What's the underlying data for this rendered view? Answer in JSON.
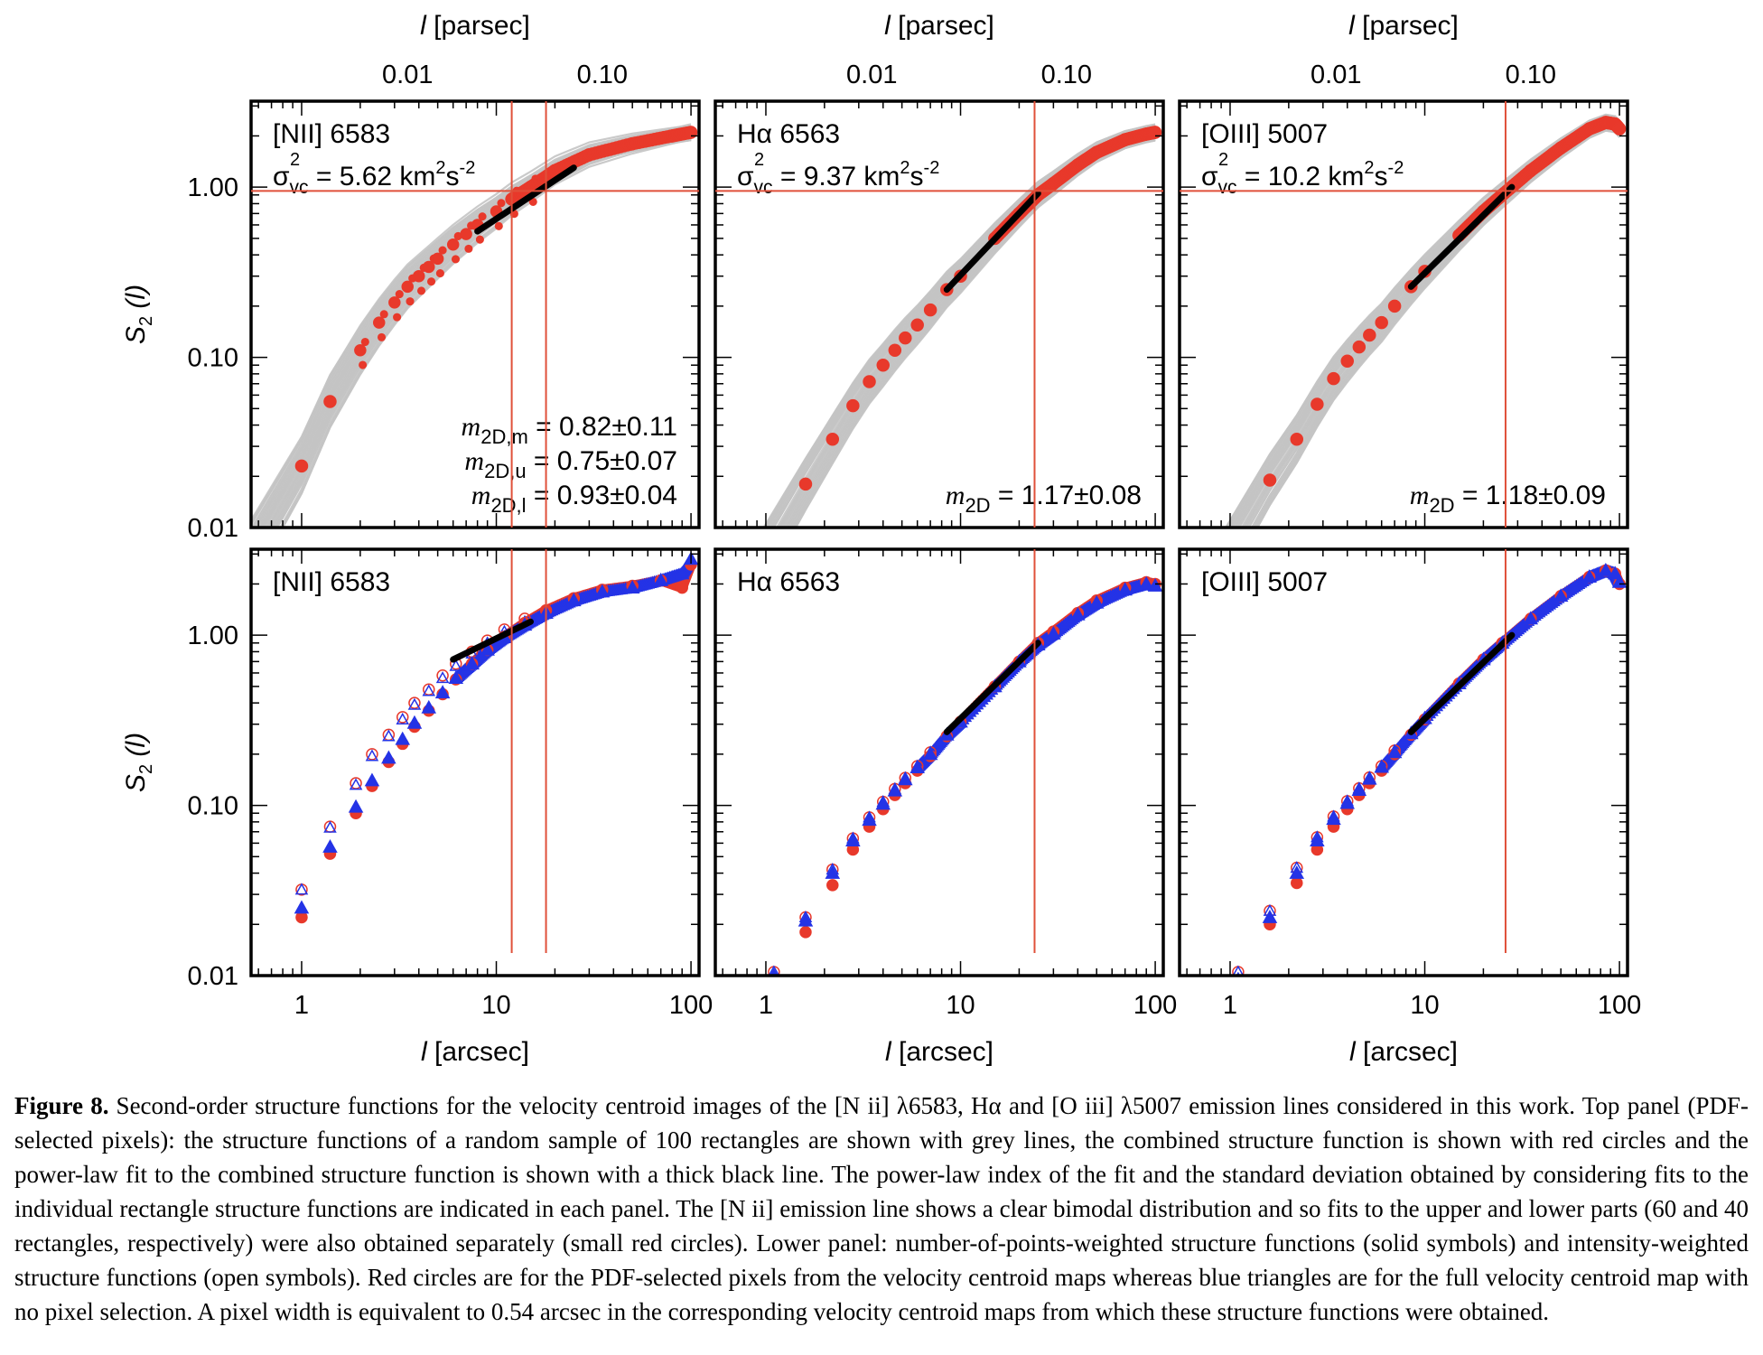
{
  "colors": {
    "grey_lines": "#c4c4c4",
    "red": "#e8392b",
    "blue": "#2433e6",
    "fit_line": "#000000",
    "ref_lines": "#e0503a"
  },
  "axes": {
    "top_xlabel_var": "l",
    "top_xlabel_unit": "[parsec]",
    "top_ticks": [
      "0.01",
      "0.10"
    ],
    "bottom_xlabel_var": "l",
    "bottom_xlabel_unit": "[arcsec]",
    "bottom_ticks": [
      "1",
      "10",
      "100"
    ],
    "ylabel_var": "S",
    "ylabel_sub": "2",
    "ylabel_arg": "(l)",
    "y_ticks": [
      "1.00",
      "0.10",
      "0.01"
    ]
  },
  "panels_top": [
    {
      "name": "[NII] 6583",
      "sigma_value": "= 5.62 km",
      "sigma_sub": "vc",
      "annotations": [
        "= 0.82±0.11",
        "= 0.75±0.07",
        "= 0.93±0.04"
      ],
      "m_subs": [
        "2D,m",
        "2D,u",
        "2D,l"
      ]
    },
    {
      "name": "Hα 6563",
      "sigma_value": "= 9.37 km",
      "sigma_sub": "vc",
      "annotations": [
        "= 1.17±0.08"
      ],
      "m_subs": [
        "2D"
      ]
    },
    {
      "name": "[OIII] 5007",
      "sigma_value": "= 10.2 km",
      "sigma_sub": "vc",
      "annotations": [
        "= 1.18±0.09"
      ],
      "m_subs": [
        "2D"
      ]
    }
  ],
  "panels_bottom": [
    {
      "name": "[NII] 6583"
    },
    {
      "name": "Hα 6563"
    },
    {
      "name": "[OIII] 5007"
    }
  ],
  "chart_data": [
    {
      "type": "scatter",
      "panel": "top-left",
      "title": "[NII] 6583",
      "xlabel": "l [arcsec]",
      "ylabel": "S2 (l)",
      "xscale": "log",
      "yscale": "log",
      "xlim": [
        0.55,
        110
      ],
      "ylim": [
        0.01,
        3.2
      ],
      "annotation_sigma": "σ²vc = 5.62 km²s⁻²",
      "series": [
        {
          "name": "combined structure function",
          "marker": "red circles",
          "x": [
            1.0,
            1.4,
            2.0,
            2.5,
            3.0,
            3.5,
            4.0,
            4.5,
            5.0,
            6.0,
            7.0,
            8.0,
            10.0,
            12.0,
            15.0,
            20.0,
            30.0,
            50.0,
            80.0,
            100.0
          ],
          "y": [
            0.023,
            0.055,
            0.11,
            0.16,
            0.21,
            0.26,
            0.3,
            0.34,
            0.38,
            0.46,
            0.53,
            0.6,
            0.72,
            0.85,
            1.0,
            1.25,
            1.55,
            1.8,
            2.0,
            2.1
          ]
        },
        {
          "name": "power-law fit",
          "marker": "thick black line",
          "x": [
            8.0,
            25.0
          ],
          "y": [
            0.55,
            1.3
          ]
        }
      ],
      "reference_lines": {
        "horizontal_y": 0.95,
        "vertical_x": [
          12.0,
          18.0
        ]
      }
    },
    {
      "type": "scatter",
      "panel": "top-middle",
      "title": "Hα 6563",
      "xlabel": "l [arcsec]",
      "ylabel": "S2 (l)",
      "xscale": "log",
      "yscale": "log",
      "xlim": [
        0.55,
        110
      ],
      "ylim": [
        0.01,
        3.2
      ],
      "annotation_sigma": "σ²vc = 9.37 km²s⁻²",
      "series": [
        {
          "name": "combined structure function",
          "marker": "red circles",
          "x": [
            1.6,
            2.2,
            2.8,
            3.4,
            4.0,
            4.6,
            5.2,
            6.0,
            7.0,
            8.5,
            10.0,
            15.0,
            20.0,
            25.0,
            30.0,
            40.0,
            50.0,
            70.0,
            90.0,
            100.0
          ],
          "y": [
            0.018,
            0.033,
            0.052,
            0.072,
            0.09,
            0.11,
            0.13,
            0.155,
            0.19,
            0.25,
            0.3,
            0.5,
            0.7,
            0.9,
            1.05,
            1.35,
            1.6,
            1.9,
            2.05,
            2.1
          ]
        },
        {
          "name": "power-law fit",
          "marker": "thick black line",
          "x": [
            8.5,
            25.0
          ],
          "y": [
            0.25,
            0.92
          ]
        }
      ],
      "reference_lines": {
        "horizontal_y": 0.95,
        "vertical_x": [
          24.0
        ]
      }
    },
    {
      "type": "scatter",
      "panel": "top-right",
      "title": "[OIII] 5007",
      "xlabel": "l [arcsec]",
      "ylabel": "S2 (l)",
      "xscale": "log",
      "yscale": "log",
      "xlim": [
        0.55,
        110
      ],
      "ylim": [
        0.01,
        3.2
      ],
      "annotation_sigma": "σ²vc = 10.2 km²s⁻²",
      "series": [
        {
          "name": "combined structure function",
          "marker": "red circles",
          "x": [
            1.6,
            2.2,
            2.8,
            3.4,
            4.0,
            4.6,
            5.2,
            6.0,
            7.0,
            8.5,
            10.0,
            15.0,
            20.0,
            25.0,
            35.0,
            50.0,
            70.0,
            85.0,
            95.0,
            100.0
          ],
          "y": [
            0.019,
            0.033,
            0.053,
            0.075,
            0.095,
            0.115,
            0.135,
            0.16,
            0.2,
            0.26,
            0.32,
            0.52,
            0.72,
            0.9,
            1.25,
            1.7,
            2.2,
            2.4,
            2.35,
            2.2
          ]
        },
        {
          "name": "power-law fit",
          "marker": "thick black line",
          "x": [
            8.5,
            28.0
          ],
          "y": [
            0.26,
            1.0
          ]
        }
      ],
      "reference_lines": {
        "horizontal_y": 0.95,
        "vertical_x": [
          26.0
        ]
      }
    },
    {
      "type": "scatter",
      "panel": "bottom-left",
      "title": "[NII] 6583",
      "xlabel": "l [arcsec]",
      "ylabel": "S2 (l)",
      "xscale": "log",
      "yscale": "log",
      "xlim": [
        0.55,
        110
      ],
      "ylim": [
        0.01,
        3.2
      ],
      "series": [
        {
          "name": "PDF-selected, points-weighted",
          "marker": "solid red circles",
          "x": [
            1.0,
            1.4,
            1.9,
            2.3,
            2.8,
            3.3,
            3.8,
            4.5,
            5.3,
            6.2,
            7.5,
            9.0,
            11.0,
            14.0,
            18.0,
            25.0,
            35.0,
            50.0,
            70.0,
            90.0,
            100.0
          ],
          "y": [
            0.022,
            0.052,
            0.09,
            0.13,
            0.18,
            0.23,
            0.29,
            0.36,
            0.45,
            0.55,
            0.68,
            0.82,
            0.98,
            1.18,
            1.4,
            1.65,
            1.85,
            1.95,
            2.1,
            1.9,
            2.6
          ]
        },
        {
          "name": "full map, points-weighted",
          "marker": "solid blue triangles",
          "x": [
            1.0,
            1.4,
            1.9,
            2.3,
            2.8,
            3.3,
            3.8,
            4.5,
            5.3,
            6.2,
            7.5,
            9.0,
            11.0,
            14.0,
            18.0,
            25.0,
            35.0,
            50.0,
            70.0,
            90.0,
            100.0
          ],
          "y": [
            0.025,
            0.057,
            0.098,
            0.14,
            0.19,
            0.245,
            0.305,
            0.375,
            0.46,
            0.56,
            0.68,
            0.82,
            0.97,
            1.15,
            1.35,
            1.6,
            1.8,
            1.9,
            2.1,
            2.3,
            2.8
          ]
        },
        {
          "name": "PDF-selected, intensity-weighted",
          "marker": "open red circles",
          "x": [
            1.0,
            1.4,
            1.9,
            2.3,
            2.8,
            3.3,
            3.8,
            4.5,
            5.3,
            6.2,
            7.5,
            9.0,
            11.0,
            14.0
          ],
          "y": [
            0.032,
            0.075,
            0.135,
            0.2,
            0.26,
            0.33,
            0.4,
            0.48,
            0.58,
            0.68,
            0.8,
            0.93,
            1.08,
            1.25
          ]
        },
        {
          "name": "full map, intensity-weighted",
          "marker": "open blue triangles",
          "x": [
            1.0,
            1.4,
            1.9,
            2.3,
            2.8,
            3.3,
            3.8,
            4.5,
            5.3,
            6.2,
            7.5,
            9.0,
            11.0,
            14.0
          ],
          "y": [
            0.032,
            0.074,
            0.132,
            0.195,
            0.255,
            0.32,
            0.39,
            0.47,
            0.56,
            0.66,
            0.78,
            0.9,
            1.05,
            1.2
          ]
        },
        {
          "name": "power-law fit",
          "marker": "thick black line",
          "x": [
            6.0,
            15.0
          ],
          "y": [
            0.72,
            1.2
          ]
        }
      ],
      "reference_lines": {
        "vertical_x": [
          12.0,
          18.0
        ]
      }
    },
    {
      "type": "scatter",
      "panel": "bottom-middle",
      "title": "Hα 6563",
      "xlabel": "l [arcsec]",
      "ylabel": "S2 (l)",
      "xscale": "log",
      "yscale": "log",
      "xlim": [
        0.55,
        110
      ],
      "ylim": [
        0.01,
        3.2
      ],
      "series": [
        {
          "name": "PDF-selected, points-weighted",
          "marker": "solid red circles",
          "x": [
            1.1,
            1.6,
            2.2,
            2.8,
            3.4,
            4.0,
            4.6,
            5.2,
            6.0,
            7.0,
            8.5,
            10.0,
            15.0,
            20.0,
            25.0,
            30.0,
            40.0,
            50.0,
            70.0,
            90.0,
            100.0
          ],
          "y": [
            0.009,
            0.018,
            0.034,
            0.055,
            0.075,
            0.095,
            0.115,
            0.135,
            0.16,
            0.195,
            0.255,
            0.31,
            0.5,
            0.7,
            0.9,
            1.05,
            1.35,
            1.6,
            1.9,
            2.05,
            2.0
          ]
        },
        {
          "name": "full map, points-weighted",
          "marker": "solid blue triangles",
          "x": [
            1.1,
            1.6,
            2.2,
            2.8,
            3.4,
            4.0,
            4.6,
            5.2,
            6.0,
            7.0,
            8.5,
            10.0,
            15.0,
            20.0,
            25.0,
            30.0,
            40.0,
            50.0,
            70.0,
            90.0,
            100.0
          ],
          "y": [
            0.01,
            0.021,
            0.04,
            0.062,
            0.082,
            0.102,
            0.122,
            0.142,
            0.167,
            0.2,
            0.26,
            0.31,
            0.5,
            0.7,
            0.88,
            1.02,
            1.32,
            1.55,
            1.85,
            2.0,
            1.95
          ]
        },
        {
          "name": "intensity-weighted",
          "marker": "open symbols",
          "x": [
            1.1,
            1.6,
            2.2,
            2.8,
            3.4,
            4.0,
            4.6,
            5.2,
            6.0,
            7.0
          ],
          "y": [
            0.0105,
            0.022,
            0.042,
            0.064,
            0.085,
            0.105,
            0.125,
            0.145,
            0.17,
            0.205
          ]
        },
        {
          "name": "power-law fit",
          "marker": "thick black line",
          "x": [
            8.5,
            25.0
          ],
          "y": [
            0.27,
            0.9
          ]
        }
      ],
      "reference_lines": {
        "vertical_x": [
          24.0
        ]
      }
    },
    {
      "type": "scatter",
      "panel": "bottom-right",
      "title": "[OIII] 5007",
      "xlabel": "l [arcsec]",
      "ylabel": "S2 (l)",
      "xscale": "log",
      "yscale": "log",
      "xlim": [
        0.55,
        110
      ],
      "ylim": [
        0.01,
        3.2
      ],
      "series": [
        {
          "name": "PDF-selected, points-weighted",
          "marker": "solid red circles",
          "x": [
            1.1,
            1.6,
            2.2,
            2.8,
            3.4,
            4.0,
            4.6,
            5.2,
            6.0,
            7.0,
            8.5,
            10.0,
            15.0,
            20.0,
            25.0,
            35.0,
            50.0,
            70.0,
            85.0,
            95.0,
            100.0
          ],
          "y": [
            0.009,
            0.02,
            0.035,
            0.055,
            0.075,
            0.095,
            0.115,
            0.135,
            0.16,
            0.2,
            0.26,
            0.32,
            0.52,
            0.72,
            0.9,
            1.25,
            1.7,
            2.2,
            2.4,
            2.3,
            2.0
          ]
        },
        {
          "name": "full map, points-weighted",
          "marker": "solid blue triangles",
          "x": [
            1.1,
            1.6,
            2.2,
            2.8,
            3.4,
            4.0,
            4.6,
            5.2,
            6.0,
            7.0,
            8.5,
            10.0,
            15.0,
            20.0,
            25.0,
            35.0,
            50.0,
            70.0,
            85.0,
            95.0,
            100.0
          ],
          "y": [
            0.0095,
            0.022,
            0.04,
            0.062,
            0.083,
            0.103,
            0.123,
            0.143,
            0.168,
            0.205,
            0.265,
            0.325,
            0.52,
            0.72,
            0.9,
            1.25,
            1.7,
            2.2,
            2.4,
            2.3,
            2.05
          ]
        },
        {
          "name": "intensity-weighted",
          "marker": "open symbols",
          "x": [
            1.1,
            1.6,
            2.2,
            2.8,
            3.4,
            4.0,
            4.6,
            5.2,
            6.0,
            7.0
          ],
          "y": [
            0.0105,
            0.024,
            0.043,
            0.065,
            0.086,
            0.106,
            0.126,
            0.146,
            0.17,
            0.21
          ]
        },
        {
          "name": "power-law fit",
          "marker": "thick black line",
          "x": [
            8.5,
            28.0
          ],
          "y": [
            0.27,
            1.0
          ]
        }
      ],
      "reference_lines": {
        "vertical_x": [
          26.0
        ]
      }
    }
  ],
  "caption": {
    "label": "Figure 8.",
    "text": "Second-order structure functions for the velocity centroid images of the [N ii] λ6583, Hα and [O iii] λ5007 emission lines considered in this work. Top panel (PDF-selected pixels): the structure functions of a random sample of 100 rectangles are shown with grey lines, the combined structure function is shown with red circles and the power-law fit to the combined structure function is shown with a thick black line. The power-law index of the fit and the standard deviation obtained by considering fits to the individual rectangle structure functions are indicated in each panel. The [N ii] emission line shows a clear bimodal distribution and so fits to the upper and lower parts (60 and 40 rectangles, respectively) were also obtained separately (small red circles). Lower panel: number-of-points-weighted structure functions (solid symbols) and intensity-weighted structure functions (open symbols). Red circles are for the PDF-selected pixels from the velocity centroid maps whereas blue triangles are for the full velocity centroid map with no pixel selection. A pixel width is equivalent to 0.54 arcsec in the corresponding velocity centroid maps from which these structure functions were obtained."
  }
}
